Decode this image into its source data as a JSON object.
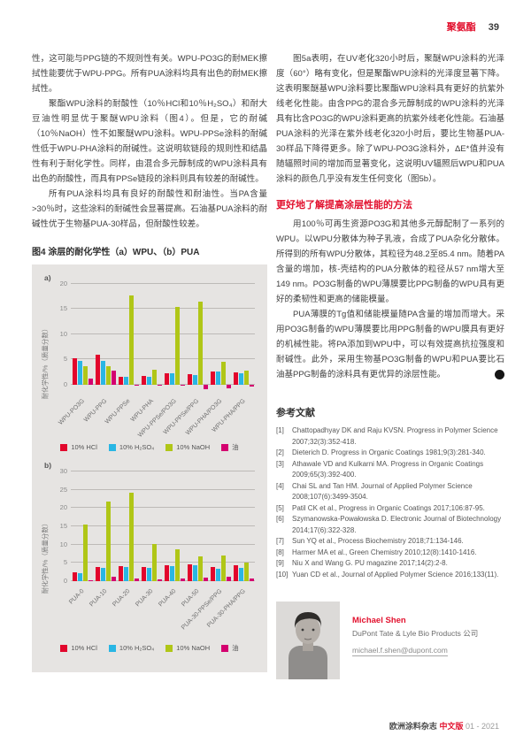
{
  "header": {
    "section": "聚氨酯",
    "page_number": "39"
  },
  "left_column": {
    "paragraphs": [
      "性，这可能与PPG链的不规则性有关。WPU-PO3G的耐MEK擦拭性能要优于WPU-PPG。所有PUA涂料均具有出色的耐MEK擦拭性。",
      "聚酯WPU涂料的耐酸性（10％HCl和10％H₂SO₄）和耐大豆油性明显优于聚醚WPU涂料（图4）。但是，它的耐碱（10％NaOH）性不如聚醚WPU涂料。WPU-PPSe涂料的耐碱性低于WPU-PHA涂料的耐碱性。这说明软链段的规则性和结晶性有利于耐化学性。同样，由混合多元醇制成的WPU涂料具有出色的耐酸性，而具有PPSe链段的涂料则具有较差的耐碱性。",
      "所有PUA涂料均具有良好的耐酸性和耐油性。当PA含量>30％时，这些涂料的耐碱性会显著提高。石油基PUA涂料的耐碱性优于生物基PUA-30样品，但耐酸性较差。"
    ],
    "figure_caption": "图4 涂层的耐化学性（a）WPU、（b）PUA"
  },
  "right_column": {
    "intro_paragraph": "图5a表明，在UV老化320小时后，聚醚WPU涂料的光泽度（60°）略有变化，但是聚酯WPU涂料的光泽度显著下降。这表明聚醚基WPU涂料要比聚酯WPU涂料具有更好的抗紫外线老化性能。由含PPG的混合多元醇制成的WPU涂料的光泽具有比含PO3G的WPU涂料更高的抗紫外线老化性能。石油基PUA涂料的光泽在紫外线老化320小时后，要比生物基PUA-30样品下降得更多。除了WPU-PO3G涂料外，ΔE*值并没有随辐照时间的增加而显著变化，这说明UV辐照后WPU和PUA涂料的颜色几乎没有发生任何变化（图5b）。",
    "section_heading": "更好地了解提高涂层性能的方法",
    "paragraphs": [
      "用100％可再生资源PO3G和其他多元醇配制了一系列的WPU。以WPU分散体为种子乳液，合成了PUA杂化分散体。所得到的所有WPU分散体，其粒径为48.2至85.4 nm。随着PA含量的增加，核-壳结构的PUA分散体的粒径从57 nm增大至149 nm。PO3G制备的WPU薄膜要比PPG制备的WPU具有更好的柔韧性和更高的储能模量。",
      "PUA薄膜的Tg值和储能模量随PA含量的增加而增大。采用PO3G制备的WPU薄膜要比用PPG制备的WPU膜具有更好的机械性能。将PA添加到WPU中，可以有效提高抗拉强度和耐碱性。此外，采用生物基PO3G制备的WPU和PUA要比石油基PPG制备的涂料具有更优异的涂层性能。"
    ],
    "end_icon_glyph": "‹",
    "references_heading": "参考文献",
    "references": [
      {
        "num": "[1]",
        "text": "Chattopadhyay DK and Raju KVSN. Progress in Polymer Science 2007;32(3):352-418."
      },
      {
        "num": "[2]",
        "text": "Dieterich D. Progress in Organic Coatings 1981;9(3):281-340."
      },
      {
        "num": "[3]",
        "text": "Athawale VD and Kulkarni MA. Progress in Organic Coatings 2009;65(3):392-400."
      },
      {
        "num": "[4]",
        "text": "Chai SL and Tan HM. Journal of Applied Polymer Science 2008;107(6):3499-3504."
      },
      {
        "num": "[5]",
        "text": "Patil CK et al., Progress in Organic Coatings 2017;106:87-95."
      },
      {
        "num": "[6]",
        "text": "Szymanowska-Powałowska D. Electronic Journal of Biotechnology 2014;17(6):322-328."
      },
      {
        "num": "[7]",
        "text": "Sun YQ et al., Process Biochemistry 2018;71:134-146."
      },
      {
        "num": "[8]",
        "text": "Harmer MA et al., Green Chemistry 2010;12(8):1410-1416."
      },
      {
        "num": "[9]",
        "text": "Niu X and Wang G. PU magazine 2017;14(2):2-8."
      },
      {
        "num": "[10]",
        "text": "Yuan CD et al., Journal of Applied Polymer Science 2016;133(11)."
      }
    ],
    "author": {
      "name": "Michael Shen",
      "company": "DuPont Tate & Lyle Bio Products 公司",
      "email": "michael.f.shen@dupont.com"
    }
  },
  "footer": {
    "magazine": "欧洲涂料杂志",
    "edition": "中文版",
    "issue": "01 - 2021"
  },
  "colors": {
    "accent_red": "#e2112e",
    "bar_hcl": "#e2062c",
    "bar_h2so4": "#29b6e4",
    "bar_naoh": "#b0c617",
    "bar_oil": "#d4006f",
    "chart_background": "#e6e4e2"
  },
  "chart_data": [
    {
      "type": "bar",
      "panel_label": "a)",
      "categories": [
        "WPU-PO3G",
        "WPU-PPG",
        "WPU-PPSe",
        "WPU-PHA",
        "WPU-PPSe/PO3G",
        "WPU-PPSe/PPG",
        "WPU-PHA/PO3G",
        "WPU-PHA/PPG"
      ],
      "series": [
        {
          "name": "10% HCl",
          "color": "#e2062c",
          "values": [
            5.2,
            5.9,
            1.5,
            1.7,
            2.3,
            2.1,
            2.6,
            2.4
          ]
        },
        {
          "name": "10% H₂SO₄",
          "color": "#29b6e4",
          "values": [
            4.7,
            4.7,
            1.5,
            1.5,
            2.3,
            1.9,
            2.5,
            2.3
          ]
        },
        {
          "name": "10% NaOH",
          "color": "#b0c617",
          "values": [
            3.7,
            3.6,
            17.8,
            2.9,
            15.4,
            16.5,
            4.6,
            2.7
          ]
        },
        {
          "name": "油",
          "color": "#d4006f",
          "values": [
            1.1,
            2.7,
            -0.3,
            -0.3,
            -0.3,
            -0.9,
            -0.8,
            -0.5
          ]
        }
      ],
      "ylabel": "耐化学性/%（质量分数）",
      "ylim": [
        -2,
        20
      ],
      "yticks": [
        0,
        5,
        10,
        15,
        20
      ],
      "grid": true,
      "legend_position": "bottom"
    },
    {
      "type": "bar",
      "panel_label": "b)",
      "categories": [
        "PUA-0",
        "PUA-10",
        "PUA-20",
        "PUA-30",
        "PUA-40",
        "PUA-50",
        "PUA-30-PPSe/PPG",
        "PUA-30-PHA/PPG"
      ],
      "series": [
        {
          "name": "10% HCl",
          "color": "#e2062c",
          "values": [
            2.3,
            3.8,
            4.2,
            3.8,
            4.4,
            4.6,
            3.9,
            4.3
          ]
        },
        {
          "name": "10% H₂SO₄",
          "color": "#29b6e4",
          "values": [
            2.2,
            3.6,
            3.8,
            3.6,
            4.1,
            4.3,
            3.4,
            3.6
          ]
        },
        {
          "name": "10% NaOH",
          "color": "#b0c617",
          "values": [
            15.5,
            21.7,
            24.2,
            10.1,
            8.8,
            6.7,
            7.0,
            5.1
          ]
        },
        {
          "name": "油",
          "color": "#d4006f",
          "values": [
            0.2,
            1.1,
            0.8,
            0.5,
            0.8,
            0.9,
            1.2,
            0.6
          ]
        }
      ],
      "ylabel": "耐化学性/%（质量分数）",
      "ylim": [
        -1,
        30
      ],
      "yticks": [
        0,
        5,
        10,
        15,
        20,
        25,
        30
      ],
      "grid": true,
      "legend_position": "bottom"
    }
  ]
}
